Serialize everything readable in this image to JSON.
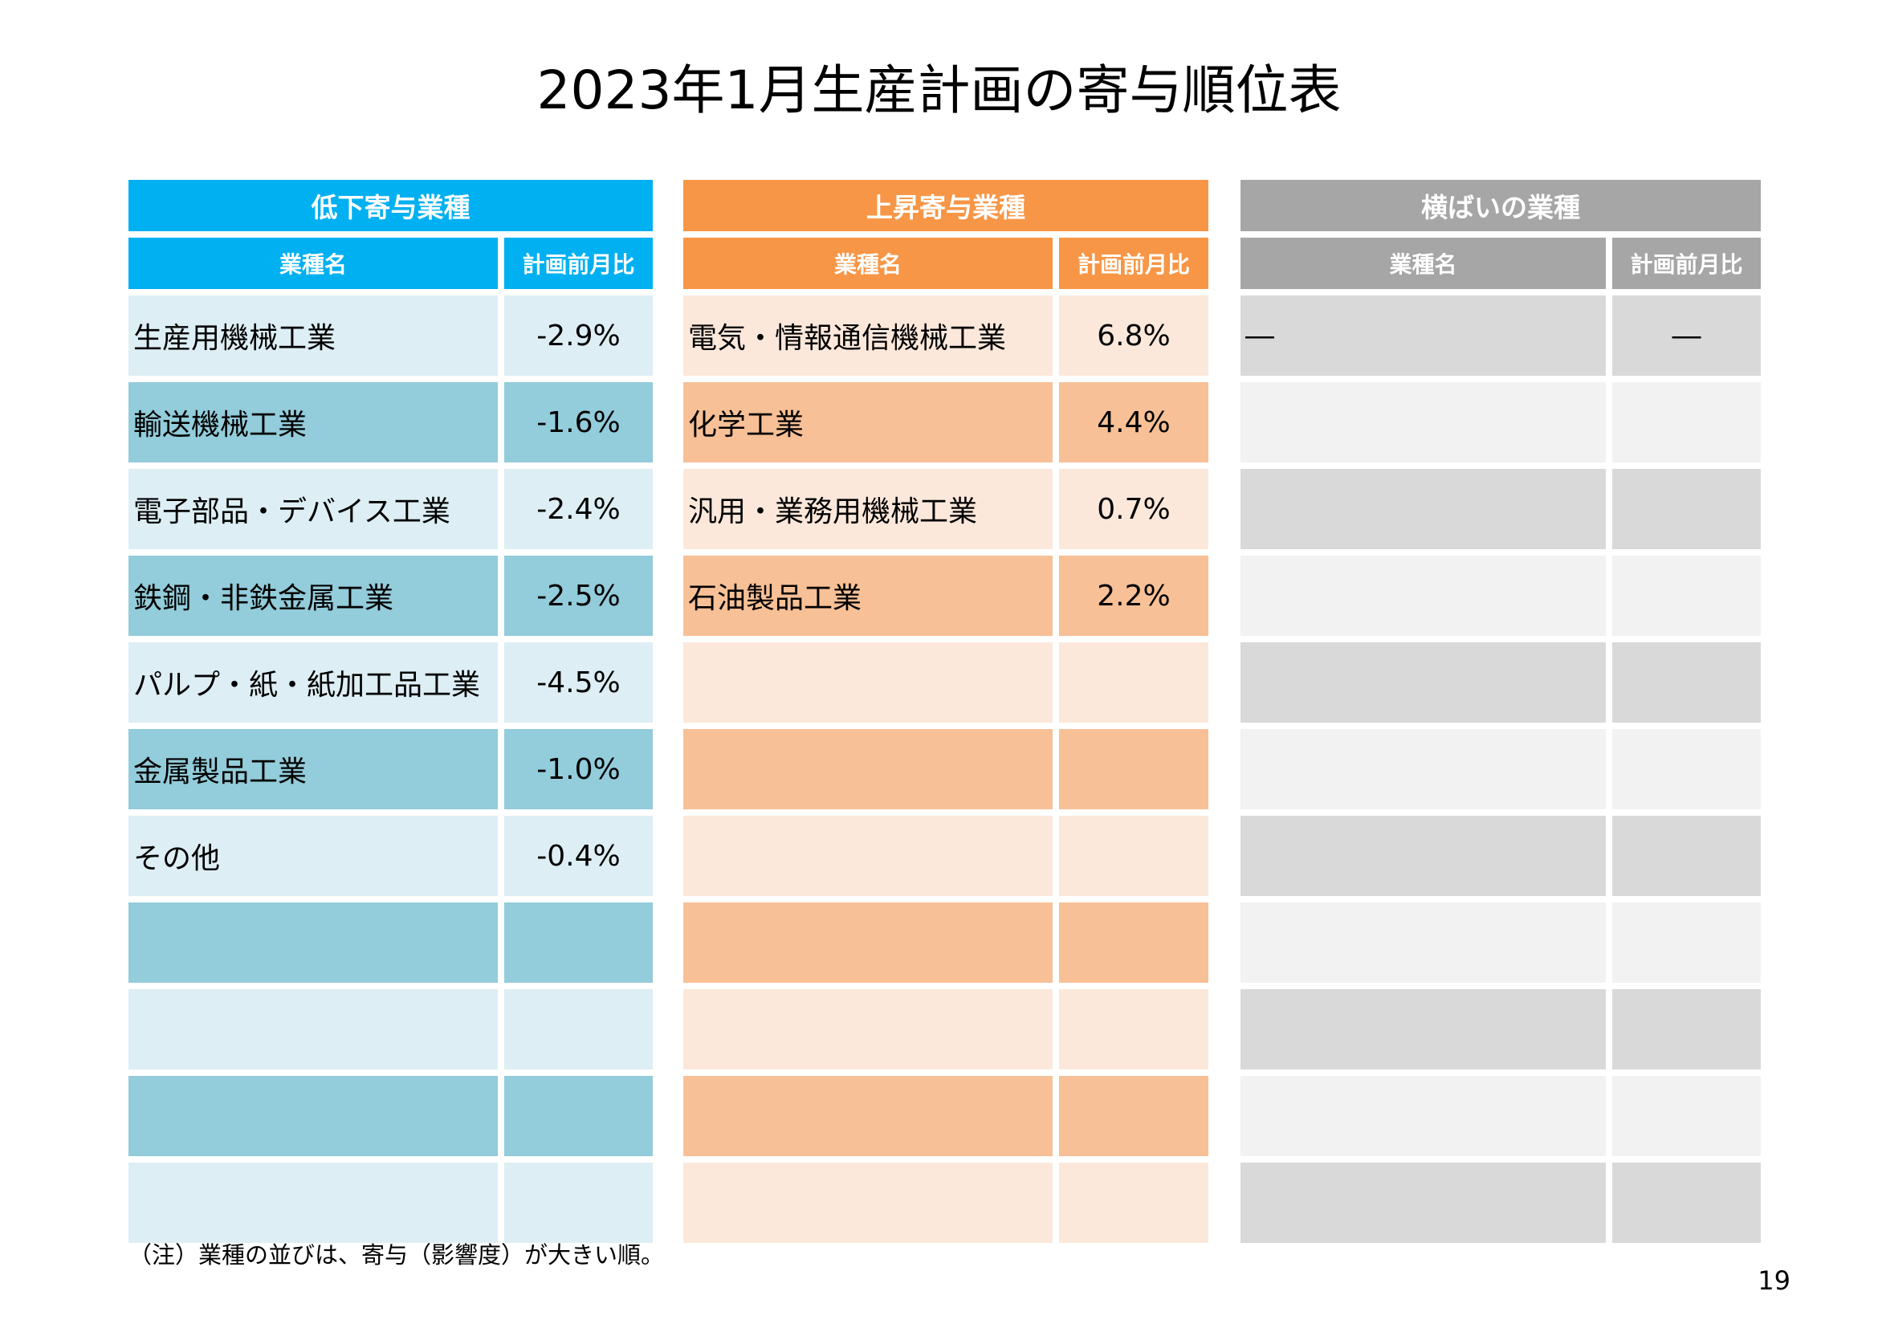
{
  "title": "2023年1月生産計画の寄与順位表",
  "colors": {
    "down_header": "#00b0f0",
    "down_row_light": "#ddeef4",
    "down_row_dark": "#93ccda",
    "up_header": "#f79646",
    "up_row_light": "#fce8db",
    "up_row_dark": "#f8c096",
    "flat_header": "#a6a6a6",
    "flat_row_light": "#d9d9d9",
    "flat_row_dark": "#f2f2f2"
  },
  "panels": [
    {
      "key": "down",
      "title": "低下寄与業種",
      "col_name_label": "業種名",
      "col_value_label": "計画前月比",
      "rows": [
        {
          "name": "生産用機械工業",
          "value": "-2.9%"
        },
        {
          "name": "輸送機械工業",
          "value": "-1.6%"
        },
        {
          "name": "電子部品・デバイス工業",
          "value": "-2.4%"
        },
        {
          "name": "鉄鋼・非鉄金属工業",
          "value": "-2.5%"
        },
        {
          "name": "パルプ・紙・紙加工品工業",
          "value": "-4.5%"
        },
        {
          "name": "金属製品工業",
          "value": "-1.0%"
        },
        {
          "name": "その他",
          "value": "-0.4%"
        },
        {
          "name": "",
          "value": ""
        },
        {
          "name": "",
          "value": ""
        },
        {
          "name": "",
          "value": ""
        },
        {
          "name": "",
          "value": ""
        }
      ]
    },
    {
      "key": "up",
      "title": "上昇寄与業種",
      "col_name_label": "業種名",
      "col_value_label": "計画前月比",
      "rows": [
        {
          "name": "電気・情報通信機械工業",
          "value": "6.8%"
        },
        {
          "name": "化学工業",
          "value": "4.4%"
        },
        {
          "name": "汎用・業務用機械工業",
          "value": "0.7%"
        },
        {
          "name": "石油製品工業",
          "value": "2.2%"
        },
        {
          "name": "",
          "value": ""
        },
        {
          "name": "",
          "value": ""
        },
        {
          "name": "",
          "value": ""
        },
        {
          "name": "",
          "value": ""
        },
        {
          "name": "",
          "value": ""
        },
        {
          "name": "",
          "value": ""
        },
        {
          "name": "",
          "value": ""
        }
      ]
    },
    {
      "key": "flat",
      "title": "横ばいの業種",
      "col_name_label": "業種名",
      "col_value_label": "計画前月比",
      "rows": [
        {
          "name": "―",
          "value": "―"
        },
        {
          "name": "",
          "value": ""
        },
        {
          "name": "",
          "value": ""
        },
        {
          "name": "",
          "value": ""
        },
        {
          "name": "",
          "value": ""
        },
        {
          "name": "",
          "value": ""
        },
        {
          "name": "",
          "value": ""
        },
        {
          "name": "",
          "value": ""
        },
        {
          "name": "",
          "value": ""
        },
        {
          "name": "",
          "value": ""
        },
        {
          "name": "",
          "value": ""
        }
      ]
    }
  ],
  "footnote": "（注）業種の並びは、寄与（影響度）が大きい順。",
  "page_number": "19"
}
